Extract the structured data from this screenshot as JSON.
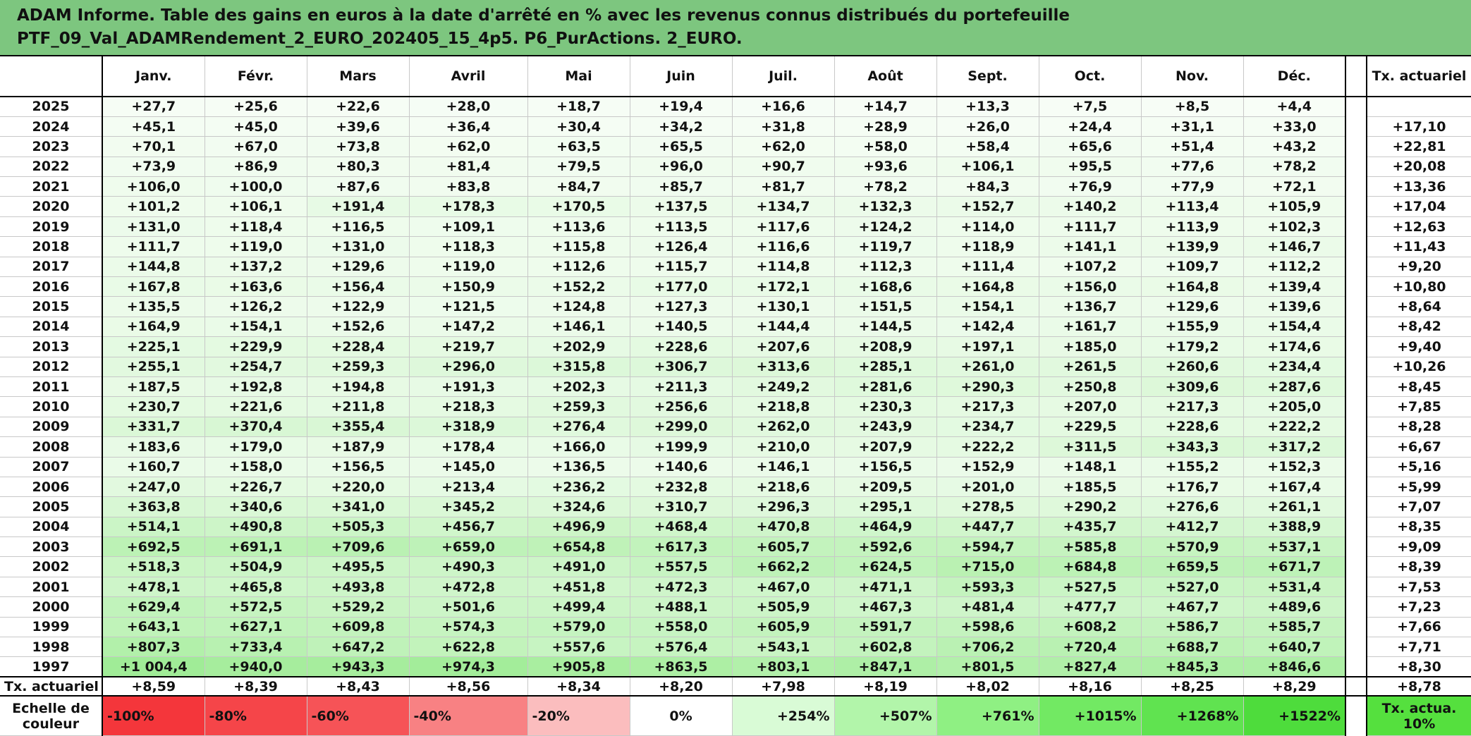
{
  "title_lines": [
    "ADAM Informe. Table des gains en euros à la date d'arrêté en % avec les revenus connus distribués du portefeuille",
    "PTF_09_Val_ADAMRendement_2_EURO_202405_15_4p5. P6_PurActions. 2_EURO."
  ],
  "header": {
    "months": [
      "Janv.",
      "Févr.",
      "Mars",
      "Avril",
      "Mai",
      "Juin",
      "Juil.",
      "Août",
      "Sept.",
      "Oct.",
      "Nov.",
      "Déc."
    ],
    "rate": "Tx. actuariel"
  },
  "rows": [
    {
      "year": "2025",
      "values": [
        "+27,7",
        "+25,6",
        "+22,6",
        "+28,0",
        "+18,7",
        "+19,4",
        "+16,6",
        "+14,7",
        "+13,3",
        "+7,5",
        "+8,5",
        "+4,4"
      ]
    },
    {
      "year": "2024",
      "values": [
        "+45,1",
        "+45,0",
        "+39,6",
        "+36,4",
        "+30,4",
        "+34,2",
        "+31,8",
        "+28,9",
        "+26,0",
        "+24,4",
        "+31,1",
        "+33,0"
      ],
      "rate": "+17,10"
    },
    {
      "year": "2023",
      "values": [
        "+70,1",
        "+67,0",
        "+73,8",
        "+62,0",
        "+63,5",
        "+65,5",
        "+62,0",
        "+58,0",
        "+58,4",
        "+65,6",
        "+51,4",
        "+43,2"
      ],
      "rate": "+22,81"
    },
    {
      "year": "2022",
      "values": [
        "+73,9",
        "+86,9",
        "+80,3",
        "+81,4",
        "+79,5",
        "+96,0",
        "+90,7",
        "+93,6",
        "+106,1",
        "+95,5",
        "+77,6",
        "+78,2"
      ],
      "rate": "+20,08"
    },
    {
      "year": "2021",
      "values": [
        "+106,0",
        "+100,0",
        "+87,6",
        "+83,8",
        "+84,7",
        "+85,7",
        "+81,7",
        "+78,2",
        "+84,3",
        "+76,9",
        "+77,9",
        "+72,1"
      ],
      "rate": "+13,36"
    },
    {
      "year": "2020",
      "values": [
        "+101,2",
        "+106,1",
        "+191,4",
        "+178,3",
        "+170,5",
        "+137,5",
        "+134,7",
        "+132,3",
        "+152,7",
        "+140,2",
        "+113,4",
        "+105,9"
      ],
      "rate": "+17,04"
    },
    {
      "year": "2019",
      "values": [
        "+131,0",
        "+118,4",
        "+116,5",
        "+109,1",
        "+113,6",
        "+113,5",
        "+117,6",
        "+124,2",
        "+114,0",
        "+111,7",
        "+113,9",
        "+102,3"
      ],
      "rate": "+12,63"
    },
    {
      "year": "2018",
      "values": [
        "+111,7",
        "+119,0",
        "+131,0",
        "+118,3",
        "+115,8",
        "+126,4",
        "+116,6",
        "+119,7",
        "+118,9",
        "+141,1",
        "+139,9",
        "+146,7"
      ],
      "rate": "+11,43"
    },
    {
      "year": "2017",
      "values": [
        "+144,8",
        "+137,2",
        "+129,6",
        "+119,0",
        "+112,6",
        "+115,7",
        "+114,8",
        "+112,3",
        "+111,4",
        "+107,2",
        "+109,7",
        "+112,2"
      ],
      "rate": "+9,20"
    },
    {
      "year": "2016",
      "values": [
        "+167,8",
        "+163,6",
        "+156,4",
        "+150,9",
        "+152,2",
        "+177,0",
        "+172,1",
        "+168,6",
        "+164,8",
        "+156,0",
        "+164,8",
        "+139,4"
      ],
      "rate": "+10,80"
    },
    {
      "year": "2015",
      "values": [
        "+135,5",
        "+126,2",
        "+122,9",
        "+121,5",
        "+124,8",
        "+127,3",
        "+130,1",
        "+151,5",
        "+154,1",
        "+136,7",
        "+129,6",
        "+139,6"
      ],
      "rate": "+8,64"
    },
    {
      "year": "2014",
      "values": [
        "+164,9",
        "+154,1",
        "+152,6",
        "+147,2",
        "+146,1",
        "+140,5",
        "+144,4",
        "+144,5",
        "+142,4",
        "+161,7",
        "+155,9",
        "+154,4"
      ],
      "rate": "+8,42"
    },
    {
      "year": "2013",
      "values": [
        "+225,1",
        "+229,9",
        "+228,4",
        "+219,7",
        "+202,9",
        "+228,6",
        "+207,6",
        "+208,9",
        "+197,1",
        "+185,0",
        "+179,2",
        "+174,6"
      ],
      "rate": "+9,40"
    },
    {
      "year": "2012",
      "values": [
        "+255,1",
        "+254,7",
        "+259,3",
        "+296,0",
        "+315,8",
        "+306,7",
        "+313,6",
        "+285,1",
        "+261,0",
        "+261,5",
        "+260,6",
        "+234,4"
      ],
      "rate": "+10,26"
    },
    {
      "year": "2011",
      "values": [
        "+187,5",
        "+192,8",
        "+194,8",
        "+191,3",
        "+202,3",
        "+211,3",
        "+249,2",
        "+281,6",
        "+290,3",
        "+250,8",
        "+309,6",
        "+287,6"
      ],
      "rate": "+8,45"
    },
    {
      "year": "2010",
      "values": [
        "+230,7",
        "+221,6",
        "+211,8",
        "+218,3",
        "+259,3",
        "+256,6",
        "+218,8",
        "+230,3",
        "+217,3",
        "+207,0",
        "+217,3",
        "+205,0"
      ],
      "rate": "+7,85"
    },
    {
      "year": "2009",
      "values": [
        "+331,7",
        "+370,4",
        "+355,4",
        "+318,9",
        "+276,4",
        "+299,0",
        "+262,0",
        "+243,9",
        "+234,7",
        "+229,5",
        "+228,6",
        "+222,2"
      ],
      "rate": "+8,28"
    },
    {
      "year": "2008",
      "values": [
        "+183,6",
        "+179,0",
        "+187,9",
        "+178,4",
        "+166,0",
        "+199,9",
        "+210,0",
        "+207,9",
        "+222,2",
        "+311,5",
        "+343,3",
        "+317,2"
      ],
      "rate": "+6,67"
    },
    {
      "year": "2007",
      "values": [
        "+160,7",
        "+158,0",
        "+156,5",
        "+145,0",
        "+136,5",
        "+140,6",
        "+146,1",
        "+156,5",
        "+152,9",
        "+148,1",
        "+155,2",
        "+152,3"
      ],
      "rate": "+5,16"
    },
    {
      "year": "2006",
      "values": [
        "+247,0",
        "+226,7",
        "+220,0",
        "+213,4",
        "+236,2",
        "+232,8",
        "+218,6",
        "+209,5",
        "+201,0",
        "+185,5",
        "+176,7",
        "+167,4"
      ],
      "rate": "+5,99"
    },
    {
      "year": "2005",
      "values": [
        "+363,8",
        "+340,6",
        "+341,0",
        "+345,2",
        "+324,6",
        "+310,7",
        "+296,3",
        "+295,1",
        "+278,5",
        "+290,2",
        "+276,6",
        "+261,1"
      ],
      "rate": "+7,07"
    },
    {
      "year": "2004",
      "values": [
        "+514,1",
        "+490,8",
        "+505,3",
        "+456,7",
        "+496,9",
        "+468,4",
        "+470,8",
        "+464,9",
        "+447,7",
        "+435,7",
        "+412,7",
        "+388,9"
      ],
      "rate": "+8,35"
    },
    {
      "year": "2003",
      "values": [
        "+692,5",
        "+691,1",
        "+709,6",
        "+659,0",
        "+654,8",
        "+617,3",
        "+605,7",
        "+592,6",
        "+594,7",
        "+585,8",
        "+570,9",
        "+537,1"
      ],
      "rate": "+9,09"
    },
    {
      "year": "2002",
      "values": [
        "+518,3",
        "+504,9",
        "+495,5",
        "+490,3",
        "+491,0",
        "+557,5",
        "+662,2",
        "+624,5",
        "+715,0",
        "+684,8",
        "+659,5",
        "+671,7"
      ],
      "rate": "+8,39"
    },
    {
      "year": "2001",
      "values": [
        "+478,1",
        "+465,8",
        "+493,8",
        "+472,8",
        "+451,8",
        "+472,3",
        "+467,0",
        "+471,1",
        "+593,3",
        "+527,5",
        "+527,0",
        "+531,4"
      ],
      "rate": "+7,53"
    },
    {
      "year": "2000",
      "values": [
        "+629,4",
        "+572,5",
        "+529,2",
        "+501,6",
        "+499,4",
        "+488,1",
        "+505,9",
        "+467,3",
        "+481,4",
        "+477,7",
        "+467,7",
        "+489,6"
      ],
      "rate": "+7,23"
    },
    {
      "year": "1999",
      "values": [
        "+643,1",
        "+627,1",
        "+609,8",
        "+574,3",
        "+579,0",
        "+558,0",
        "+605,9",
        "+591,7",
        "+598,6",
        "+608,2",
        "+586,7",
        "+585,7"
      ],
      "rate": "+7,66"
    },
    {
      "year": "1998",
      "values": [
        "+807,3",
        "+733,4",
        "+647,2",
        "+622,8",
        "+557,6",
        "+576,4",
        "+543,1",
        "+602,8",
        "+706,2",
        "+720,4",
        "+688,7",
        "+640,7"
      ],
      "rate": "+7,71"
    },
    {
      "year": "1997",
      "values": [
        "+1 004,4",
        "+940,0",
        "+943,3",
        "+974,3",
        "+905,8",
        "+863,5",
        "+803,1",
        "+847,1",
        "+801,5",
        "+827,4",
        "+845,3",
        "+846,6"
      ],
      "rate": "+8,30"
    }
  ],
  "footer": {
    "label": "Tx. actuariel",
    "values": [
      "+8,59",
      "+8,39",
      "+8,43",
      "+8,56",
      "+8,34",
      "+8,20",
      "+7,98",
      "+8,19",
      "+8,02",
      "+8,16",
      "+8,25",
      "+8,29"
    ],
    "rate": "+8,78"
  },
  "scale": {
    "label": "Echelle de couleur",
    "steps": [
      {
        "label": "-100%",
        "color": "#f4363b"
      },
      {
        "label": "-80%",
        "color": "#f54549"
      },
      {
        "label": "-60%",
        "color": "#f65357"
      },
      {
        "label": "-40%",
        "color": "#f88183"
      },
      {
        "label": "-20%",
        "color": "#fbbdbe"
      },
      {
        "label": "0%",
        "color": "#ffffff"
      },
      {
        "label": "+254%",
        "color": "#d9fbd6"
      },
      {
        "label": "+507%",
        "color": "#b2f5aa"
      },
      {
        "label": "+761%",
        "color": "#8ff083"
      },
      {
        "label": "+1015%",
        "color": "#72e963"
      },
      {
        "label": "+1268%",
        "color": "#60e350"
      },
      {
        "label": "+1522%",
        "color": "#4edc3c"
      }
    ],
    "rate": {
      "label": "Tx. actua. 10%",
      "color": "#55e03e"
    }
  }
}
